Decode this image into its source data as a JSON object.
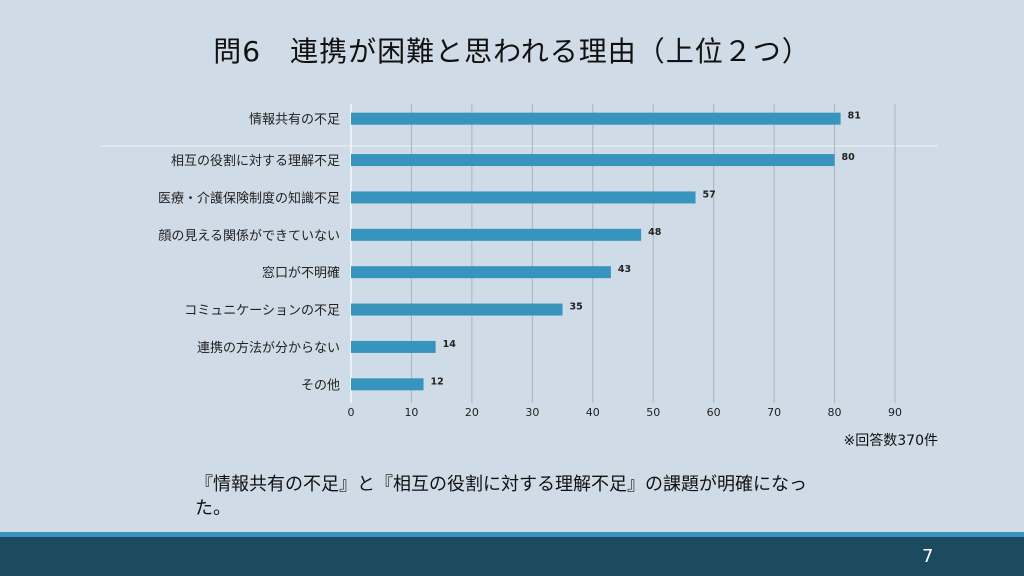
{
  "slide": {
    "title": "問6　連携が困難と思われる理由（上位２つ）",
    "note": "※回答数370件",
    "summary": "『情報共有の不足』と『相互の役割に対する理解不足』の課題が明確になった。",
    "page_number": "7"
  },
  "colors": {
    "bar": "#3794bd",
    "background": "#cfdbe6",
    "footer": "#1c4a5e",
    "stripe": "#3a93bd"
  },
  "chart_data": {
    "type": "bar",
    "orientation": "horizontal",
    "title": "問6　連携が困難と思われる理由（上位２つ）",
    "categories": [
      "情報共有の不足",
      "相互の役割に対する理解不足",
      "医療・介護保険制度の知識不足",
      "顔の見える関係ができていない",
      "窓口が不明確",
      "コミュニケーションの不足",
      "連携の方法が分からない",
      "その他"
    ],
    "values": [
      81,
      80,
      57,
      48,
      43,
      35,
      14,
      12
    ],
    "xlim": [
      0,
      90
    ],
    "xticks": [
      0,
      10,
      20,
      30,
      40,
      50,
      60,
      70,
      80,
      90
    ],
    "grid": true,
    "data_labels": true
  }
}
